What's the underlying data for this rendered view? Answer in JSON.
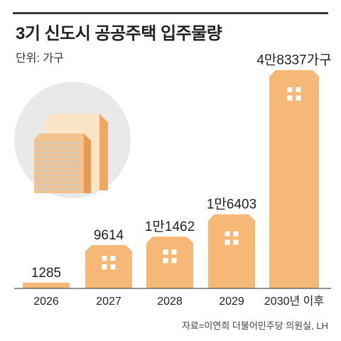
{
  "header": {
    "title": "3기 신도시 공공주택 입주물량",
    "unit": "단위: 가구"
  },
  "footer": {
    "source": "자료=이연희 더불어민주당 의원실, LH"
  },
  "colors": {
    "building": "#f6b877",
    "window": "#ffffff",
    "circle": "#e9e9e9",
    "illustration_light": "#fbe3c6",
    "illustration_dark": "#f0a763",
    "baseline": "#555555"
  },
  "chart_data": {
    "type": "bar",
    "title": "3기 신도시 공공주택 입주물량",
    "unit": "단위: 가구",
    "categories": [
      "2026",
      "2027",
      "2028",
      "2029",
      "2030년 이후"
    ],
    "values": [
      1285,
      9614,
      11462,
      16403,
      48337
    ],
    "labels": [
      "1285",
      "9614",
      "1만1462",
      "1만6403",
      "4만8337가구"
    ],
    "ylim": [
      0,
      50000
    ],
    "grid": false,
    "legend": "none"
  }
}
